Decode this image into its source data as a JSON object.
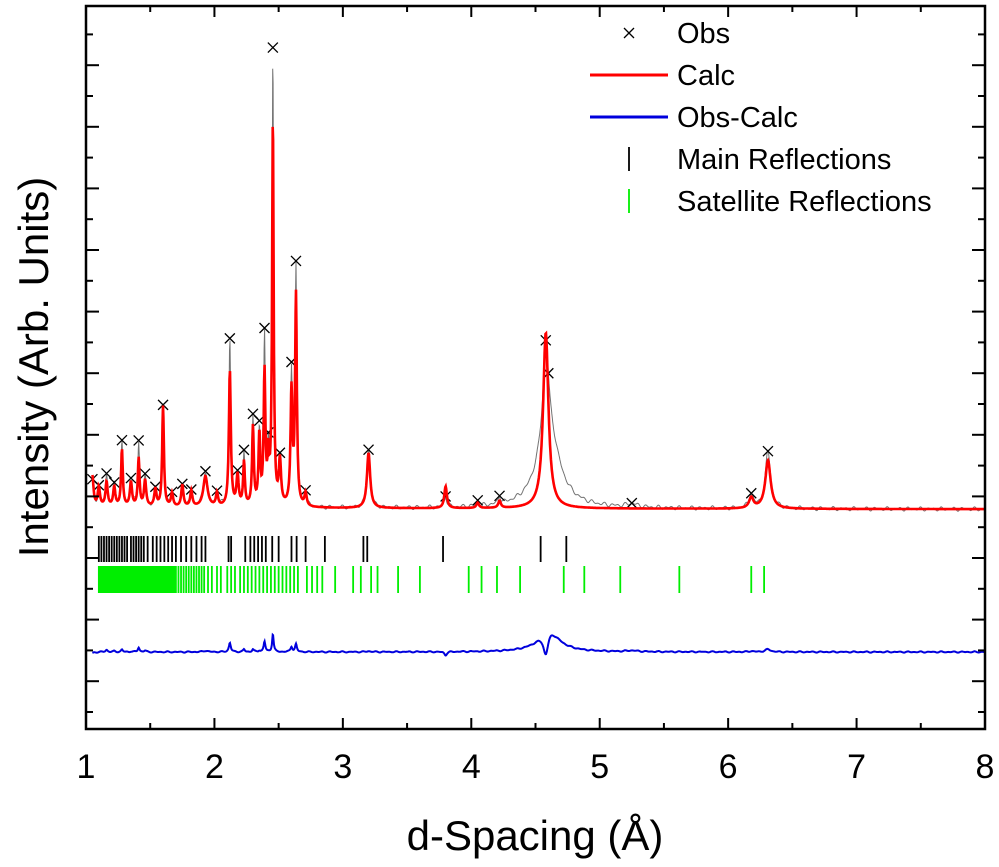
{
  "chart_data": {
    "type": "line",
    "title": "",
    "xlabel": "d-Spacing (Å)",
    "ylabel": "Intensity (Arb. Units)",
    "xlim": [
      1,
      8
    ],
    "x_ticks": [
      1,
      2,
      3,
      4,
      5,
      6,
      7,
      8
    ],
    "x_tick_labels": [
      "1",
      "2",
      "3",
      "4",
      "5",
      "6",
      "7",
      "8"
    ],
    "y_tick_labels_shown": false,
    "legend_position": "top-right",
    "colors": {
      "obs": "#000000",
      "calc": "#ff0000",
      "diff": "#0000dd",
      "main": "#000000",
      "satellite": "#00ee00"
    },
    "legend": [
      {
        "key": "obs",
        "label": "Obs",
        "symbol": "cross"
      },
      {
        "key": "calc",
        "label": "Calc",
        "symbol": "line"
      },
      {
        "key": "diff",
        "label": "Obs-Calc",
        "symbol": "line"
      },
      {
        "key": "main",
        "label": "Main Reflections",
        "symbol": "tick"
      },
      {
        "key": "satellite",
        "label": "Satellite Reflections",
        "symbol": "tick"
      }
    ],
    "baseline": 0,
    "peaks": [
      {
        "d": 1.05,
        "calc": 3.5,
        "obs": 3,
        "w": 0.01
      },
      {
        "d": 1.1,
        "calc": 2.2,
        "obs": 2.2,
        "w": 0.01
      },
      {
        "d": 1.16,
        "calc": 2.8,
        "obs": 3.6,
        "w": 0.01
      },
      {
        "d": 1.22,
        "calc": 2.2,
        "obs": 2.5,
        "w": 0.01
      },
      {
        "d": 1.28,
        "calc": 6.5,
        "obs": 7.4,
        "w": 0.008
      },
      {
        "d": 1.35,
        "calc": 2.8,
        "obs": 3,
        "w": 0.01
      },
      {
        "d": 1.41,
        "calc": 5.5,
        "obs": 7.3,
        "w": 0.008
      },
      {
        "d": 1.46,
        "calc": 3,
        "obs": 3.5,
        "w": 0.01
      },
      {
        "d": 1.54,
        "calc": 2,
        "obs": 2,
        "w": 0.01
      },
      {
        "d": 1.6,
        "calc": 11.5,
        "obs": 11.5,
        "w": 0.008
      },
      {
        "d": 1.67,
        "calc": 1.5,
        "obs": 1.5,
        "w": 0.01
      },
      {
        "d": 1.75,
        "calc": 2.5,
        "obs": 2.5,
        "w": 0.01
      },
      {
        "d": 1.82,
        "calc": 1.8,
        "obs": 1.8,
        "w": 0.01
      },
      {
        "d": 1.93,
        "calc": 3.5,
        "obs": 4,
        "w": 0.02
      },
      {
        "d": 2.02,
        "calc": 1.5,
        "obs": 1.5,
        "w": 0.01
      },
      {
        "d": 2.12,
        "calc": 15.5,
        "obs": 19,
        "w": 0.009
      },
      {
        "d": 2.18,
        "calc": 3.5,
        "obs": 3.5,
        "w": 0.01
      },
      {
        "d": 2.23,
        "calc": 5,
        "obs": 6,
        "w": 0.008
      },
      {
        "d": 2.3,
        "calc": 9,
        "obs": 10,
        "w": 0.008
      },
      {
        "d": 2.35,
        "calc": 8,
        "obs": 8.5,
        "w": 0.008
      },
      {
        "d": 2.39,
        "calc": 15,
        "obs": 19,
        "w": 0.008
      },
      {
        "d": 2.42,
        "calc": 5,
        "obs": 5,
        "w": 0.008
      },
      {
        "d": 2.455,
        "calc": 44.5,
        "obs": 51.5,
        "w": 0.007
      },
      {
        "d": 2.51,
        "calc": 5,
        "obs": 5,
        "w": 0.01
      },
      {
        "d": 2.6,
        "calc": 13,
        "obs": 15,
        "w": 0.009
      },
      {
        "d": 2.635,
        "calc": 24,
        "obs": 27,
        "w": 0.008
      },
      {
        "d": 2.71,
        "calc": 1.5,
        "obs": 1.5,
        "w": 0.01
      },
      {
        "d": 3.2,
        "calc": 6.3,
        "obs": 6.6,
        "w": 0.015
      },
      {
        "d": 3.8,
        "calc": 2.5,
        "obs": 1.2,
        "w": 0.012
      },
      {
        "d": 4.05,
        "calc": 0.6,
        "obs": 0.6,
        "w": 0.012
      },
      {
        "d": 4.22,
        "calc": 0.8,
        "obs": 0.8,
        "w": 0.012
      },
      {
        "d": 4.58,
        "calc": 20,
        "obs": 10.5,
        "w": 0.025
      },
      {
        "d": 4.6,
        "calc": 0,
        "obs": 9,
        "w": 0.1
      },
      {
        "d": 5.25,
        "calc": 0,
        "obs": 0.4,
        "w": 0.05
      },
      {
        "d": 6.18,
        "calc": 1.2,
        "obs": 1.5,
        "w": 0.02
      },
      {
        "d": 6.31,
        "calc": 5.5,
        "obs": 6.5,
        "w": 0.025
      }
    ],
    "main_reflections": [
      1.1,
      1.12,
      1.14,
      1.16,
      1.18,
      1.2,
      1.22,
      1.24,
      1.26,
      1.28,
      1.3,
      1.32,
      1.35,
      1.37,
      1.39,
      1.41,
      1.43,
      1.45,
      1.48,
      1.52,
      1.55,
      1.58,
      1.61,
      1.64,
      1.67,
      1.7,
      1.74,
      1.78,
      1.82,
      1.86,
      1.9,
      1.93,
      2.11,
      2.13,
      2.24,
      2.28,
      2.31,
      2.34,
      2.37,
      2.4,
      2.45,
      2.5,
      2.6,
      2.64,
      2.71,
      2.86,
      3.16,
      3.19,
      3.78,
      4.54,
      4.74
    ],
    "satellite_reflections": [
      1.1,
      1.11,
      1.12,
      1.13,
      1.14,
      1.15,
      1.16,
      1.17,
      1.18,
      1.19,
      1.2,
      1.21,
      1.22,
      1.23,
      1.24,
      1.25,
      1.26,
      1.27,
      1.28,
      1.29,
      1.3,
      1.31,
      1.32,
      1.33,
      1.34,
      1.35,
      1.36,
      1.37,
      1.38,
      1.39,
      1.4,
      1.41,
      1.42,
      1.43,
      1.44,
      1.45,
      1.46,
      1.47,
      1.48,
      1.49,
      1.5,
      1.51,
      1.52,
      1.53,
      1.54,
      1.55,
      1.56,
      1.57,
      1.58,
      1.59,
      1.6,
      1.61,
      1.62,
      1.63,
      1.64,
      1.65,
      1.66,
      1.67,
      1.68,
      1.69,
      1.7,
      1.72,
      1.74,
      1.76,
      1.78,
      1.8,
      1.82,
      1.84,
      1.86,
      1.88,
      1.9,
      1.92,
      1.95,
      1.98,
      2.02,
      2.05,
      2.1,
      2.13,
      2.16,
      2.2,
      2.23,
      2.26,
      2.29,
      2.32,
      2.35,
      2.38,
      2.41,
      2.44,
      2.47,
      2.5,
      2.53,
      2.56,
      2.59,
      2.62,
      2.65,
      2.72,
      2.76,
      2.8,
      2.84,
      2.94,
      3.08,
      3.14,
      3.22,
      3.27,
      3.43,
      3.6,
      3.98,
      4.08,
      4.2,
      4.38,
      4.72,
      4.88,
      5.16,
      5.62,
      6.18,
      6.28
    ]
  }
}
